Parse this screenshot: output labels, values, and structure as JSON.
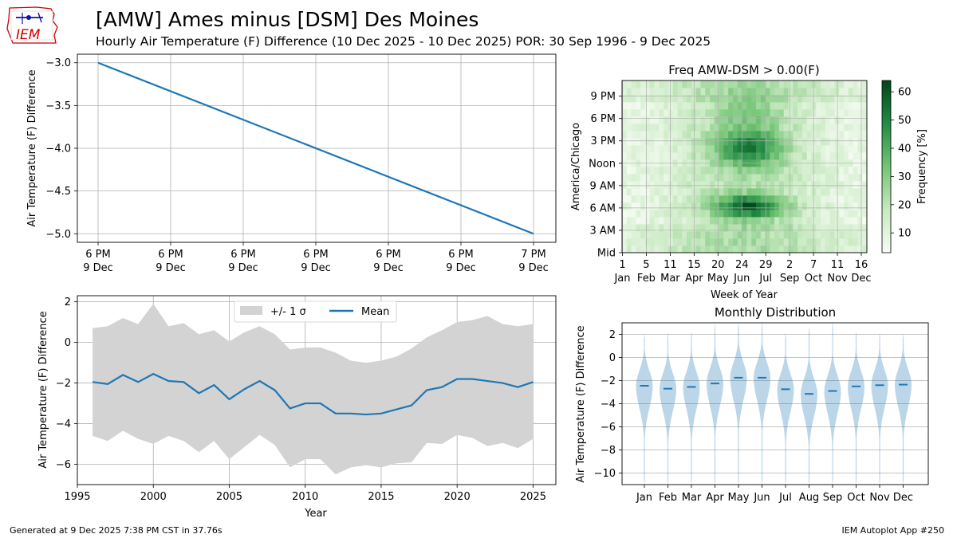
{
  "header": {
    "title": "[AMW] Ames minus [DSM] Des Moines",
    "subtitle": "Hourly Air Temperature (F) Difference (10 Dec 2025 - 10 Dec 2025) POR: 30 Sep 1996 - 9 Dec 2025"
  },
  "logo": {
    "text": "IEM"
  },
  "footer": {
    "left": "Generated at 9 Dec 2025 7:38 PM CST in 37.76s",
    "right": "IEM Autoplot App #250"
  },
  "colors": {
    "line": "#1f77b4",
    "band": "#d3d3d3",
    "grid": "#b0b0b0",
    "violin": "#1f77b4",
    "logo_red": "#cc0000",
    "logo_blue": "#1111aa"
  },
  "chart_data": [
    {
      "id": "hourly",
      "type": "line",
      "title": "",
      "xlabel": "",
      "ylabel": "Air Temperature (F) Difference",
      "ylim": [
        -5.1,
        -2.9
      ],
      "yticks": [
        -3.0,
        -3.5,
        -4.0,
        -4.5,
        -5.0
      ],
      "ytick_labels": [
        "−3.0",
        "−3.5",
        "−4.0",
        "−4.5",
        "−5.0"
      ],
      "xtick_labels": [
        [
          "6 PM",
          "9 Dec"
        ],
        [
          "6 PM",
          "9 Dec"
        ],
        [
          "6 PM",
          "9 Dec"
        ],
        [
          "6 PM",
          "9 Dec"
        ],
        [
          "6 PM",
          "9 Dec"
        ],
        [
          "6 PM",
          "9 Dec"
        ],
        [
          "7 PM",
          "9 Dec"
        ]
      ],
      "x": [
        0,
        6
      ],
      "values": [
        -3.0,
        -5.0
      ]
    },
    {
      "id": "heatmap",
      "type": "heatmap",
      "title": "Freq AMW-DSM > 0.00(F)",
      "xlabel": "Week of Year",
      "ylabel": "America/Chicago",
      "xtick_labels": [
        [
          "1",
          "Jan"
        ],
        [
          "5",
          "Feb"
        ],
        [
          "11",
          "Mar"
        ],
        [
          "15",
          "Apr"
        ],
        [
          "20",
          "May"
        ],
        [
          "24",
          "Jun"
        ],
        [
          "29",
          "Jul"
        ],
        [
          "2",
          "Sep"
        ],
        [
          "7",
          "Oct"
        ],
        [
          "11",
          "Nov"
        ],
        [
          "16",
          "Dec"
        ]
      ],
      "ytick_labels": [
        "Mid",
        "3 AM",
        "6 AM",
        "9 AM",
        "Noon",
        "3 PM",
        "6 PM",
        "9 PM"
      ],
      "colorbar_label": "Frequency [%]",
      "colorbar_ticks": [
        "10",
        "20",
        "30",
        "40",
        "50",
        "60"
      ],
      "vmin": 3,
      "vmax": 64,
      "weeks": 53,
      "hours": 24
    },
    {
      "id": "yearly",
      "type": "line",
      "title": "",
      "xlabel": "Year",
      "ylabel": "Air Temperature (F) Difference",
      "xlim": [
        1995,
        2026.5
      ],
      "ylim": [
        -7,
        2.3
      ],
      "xticks": [
        "1995",
        "2000",
        "2005",
        "2010",
        "2015",
        "2020",
        "2025"
      ],
      "yticks": [
        "2",
        "0",
        "−2",
        "−4",
        "−6"
      ],
      "legend": {
        "band_label": "+/- 1 σ",
        "mean_label": "Mean",
        "position": "top-center"
      },
      "years": [
        1996,
        1997,
        1998,
        1999,
        2000,
        2001,
        2002,
        2003,
        2004,
        2005,
        2006,
        2007,
        2008,
        2009,
        2010,
        2011,
        2012,
        2013,
        2014,
        2015,
        2016,
        2017,
        2018,
        2019,
        2020,
        2021,
        2022,
        2023,
        2024,
        2025
      ],
      "mean": [
        -1.95,
        -2.05,
        -1.6,
        -1.95,
        -1.55,
        -1.9,
        -1.95,
        -2.5,
        -2.1,
        -2.8,
        -2.3,
        -1.9,
        -2.35,
        -3.25,
        -3.0,
        -3.0,
        -3.5,
        -3.5,
        -3.55,
        -3.5,
        -3.3,
        -3.1,
        -2.35,
        -2.2,
        -1.8,
        -1.8,
        -1.9,
        -2.0,
        -2.2,
        -1.95
      ],
      "upper": [
        0.7,
        0.8,
        1.2,
        0.9,
        1.9,
        0.8,
        0.95,
        0.4,
        0.6,
        0.05,
        0.5,
        0.8,
        0.4,
        -0.35,
        -0.25,
        -0.25,
        -0.5,
        -0.9,
        -1.0,
        -0.9,
        -0.7,
        -0.3,
        0.25,
        0.6,
        1.0,
        1.1,
        1.3,
        0.9,
        0.8,
        0.9
      ],
      "lower": [
        -4.6,
        -4.85,
        -4.35,
        -4.75,
        -5.0,
        -4.6,
        -4.85,
        -5.4,
        -4.85,
        -5.75,
        -5.15,
        -4.55,
        -5.05,
        -6.15,
        -5.75,
        -5.75,
        -6.5,
        -6.15,
        -6.05,
        -6.15,
        -5.95,
        -5.9,
        -4.95,
        -5.0,
        -4.55,
        -4.7,
        -5.1,
        -4.95,
        -5.2,
        -4.75
      ]
    },
    {
      "id": "monthly",
      "type": "violin",
      "title": "Monthly Distribution",
      "xlabel": "",
      "ylabel": "Air Temperature (F) Difference",
      "ylim": [
        -11,
        3
      ],
      "yticks": [
        "2",
        "0",
        "−2",
        "−4",
        "−6",
        "−8",
        "−10"
      ],
      "categories": [
        "Jan",
        "Feb",
        "Mar",
        "Apr",
        "May",
        "Jun",
        "Jul",
        "Aug",
        "Sep",
        "Oct",
        "Nov",
        "Dec"
      ],
      "means": [
        -2.45,
        -2.7,
        -2.55,
        -2.25,
        -1.75,
        -1.75,
        -2.75,
        -3.15,
        -2.9,
        -2.5,
        -2.4,
        -2.35
      ],
      "mins": [
        -11,
        -11,
        -11,
        -11,
        -11,
        -11,
        -11,
        -11,
        -11,
        -11,
        -11,
        -11
      ],
      "maxs": [
        2.0,
        2.1,
        2.2,
        2.9,
        3.0,
        3.0,
        2.1,
        2.6,
        3.0,
        2.2,
        2.1,
        2.0
      ]
    }
  ]
}
